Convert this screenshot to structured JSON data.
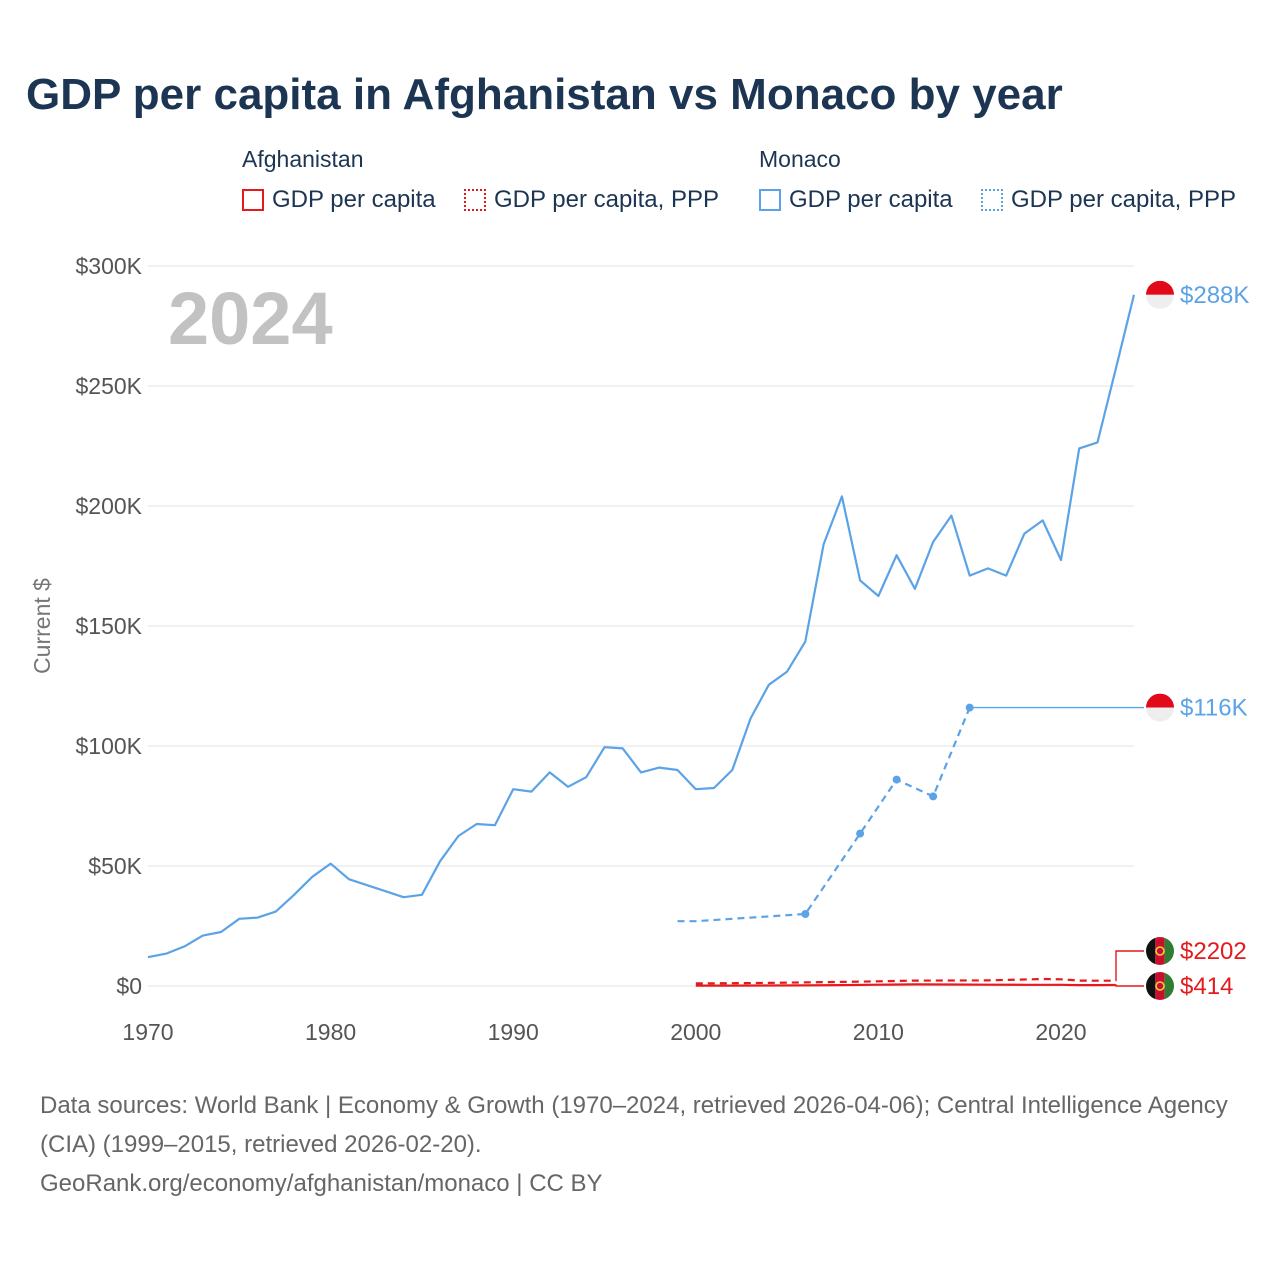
{
  "title": "GDP per capita in Afghanistan vs Monaco by year",
  "legend": {
    "groups": [
      {
        "name": "Afghanistan",
        "color": "#e41a1c",
        "items": [
          {
            "label": "GDP per capita",
            "style": "solid"
          },
          {
            "label": "GDP per capita, PPP",
            "style": "dotted"
          }
        ]
      },
      {
        "name": "Monaco",
        "color": "#5ba3e6",
        "items": [
          {
            "label": "GDP per capita",
            "style": "solid"
          },
          {
            "label": "GDP per capita, PPP",
            "style": "dotted"
          }
        ]
      }
    ]
  },
  "footer": {
    "line1": "Data sources: World Bank | Economy & Growth (1970–2024, retrieved 2026-04-06); Central Intelligence Agency (CIA) (1999–2015, retrieved 2026-02-20).",
    "line2": "GeoRank.org/economy/afghanistan/monaco | CC BY"
  },
  "colors": {
    "afghanistan": "#e41a1c",
    "monaco": "#5ba3e6",
    "grid": "#e3e3e3"
  },
  "chart_data": {
    "type": "line",
    "year_label": "2024",
    "ylabel": "Current $",
    "xlim": [
      1970,
      2024
    ],
    "ylim": [
      0,
      300000
    ],
    "y_ticks": [
      {
        "value": 0,
        "label": "$0"
      },
      {
        "value": 50000,
        "label": "$50K"
      },
      {
        "value": 100000,
        "label": "$100K"
      },
      {
        "value": 150000,
        "label": "$150K"
      },
      {
        "value": 200000,
        "label": "$200K"
      },
      {
        "value": 250000,
        "label": "$250K"
      },
      {
        "value": 300000,
        "label": "$300K"
      }
    ],
    "x_ticks": [
      {
        "value": 1970,
        "label": "1970"
      },
      {
        "value": 1980,
        "label": "1980"
      },
      {
        "value": 1990,
        "label": "1990"
      },
      {
        "value": 2000,
        "label": "2000"
      },
      {
        "value": 2010,
        "label": "2010"
      },
      {
        "value": 2020,
        "label": "2020"
      }
    ],
    "series": [
      {
        "name": "Monaco GDP per capita",
        "country": "Monaco",
        "color": "#5ba3e6",
        "style": "solid",
        "end_label": "$288K",
        "flag": "monaco",
        "x": [
          1970,
          1971,
          1972,
          1973,
          1974,
          1975,
          1976,
          1977,
          1978,
          1979,
          1980,
          1981,
          1982,
          1983,
          1984,
          1985,
          1986,
          1987,
          1988,
          1989,
          1990,
          1991,
          1992,
          1993,
          1994,
          1995,
          1996,
          1997,
          1998,
          1999,
          2000,
          2001,
          2002,
          2003,
          2004,
          2005,
          2006,
          2007,
          2008,
          2009,
          2010,
          2011,
          2012,
          2013,
          2014,
          2015,
          2016,
          2017,
          2018,
          2019,
          2020,
          2021,
          2022,
          2023,
          2024
        ],
        "y": [
          12000,
          13500,
          16500,
          21000,
          22500,
          28000,
          28500,
          31000,
          38000,
          45500,
          51000,
          44500,
          42000,
          39500,
          37000,
          38000,
          52000,
          62500,
          67500,
          67000,
          82000,
          81000,
          89000,
          83000,
          87000,
          99500,
          99000,
          89000,
          91000,
          90000,
          82000,
          82500,
          90000,
          111500,
          125500,
          131000,
          143500,
          184000,
          204000,
          169000,
          162500,
          179500,
          165500,
          185000,
          196000,
          171000,
          174000,
          171000,
          188500,
          194000,
          177500,
          224000,
          226500,
          257000,
          288000
        ]
      },
      {
        "name": "Monaco GDP per capita, PPP",
        "country": "Monaco",
        "color": "#5ba3e6",
        "style": "dashed",
        "end_label": "$116K",
        "flag": "monaco",
        "carry_forward": true,
        "x": [
          1999,
          2000,
          2006,
          2009,
          2011,
          2013,
          2015
        ],
        "y": [
          27000,
          27000,
          30000,
          63500,
          86000,
          79000,
          116000
        ],
        "dots": [
          2006,
          2009,
          2011,
          2013,
          2015
        ]
      },
      {
        "name": "Afghanistan GDP per capita, PPP",
        "country": "Afghanistan",
        "color": "#e41a1c",
        "style": "dashed",
        "end_label": "$2202",
        "flag": "afghanistan",
        "x": [
          2000,
          2002,
          2004,
          2006,
          2008,
          2010,
          2012,
          2014,
          2016,
          2018,
          2019,
          2020,
          2021,
          2022,
          2023
        ],
        "y": [
          1100,
          1150,
          1300,
          1500,
          1700,
          1950,
          2250,
          2300,
          2350,
          2700,
          2900,
          2800,
          2250,
          2200,
          2202
        ]
      },
      {
        "name": "Afghanistan GDP per capita",
        "country": "Afghanistan",
        "color": "#e41a1c",
        "style": "solid",
        "end_label": "$414",
        "flag": "afghanistan",
        "x": [
          2000,
          2002,
          2004,
          2006,
          2008,
          2010,
          2012,
          2014,
          2016,
          2018,
          2019,
          2020,
          2021,
          2022,
          2023
        ],
        "y": [
          180,
          180,
          220,
          270,
          380,
          540,
          650,
          630,
          550,
          490,
          500,
          510,
          360,
          360,
          414
        ]
      }
    ]
  }
}
